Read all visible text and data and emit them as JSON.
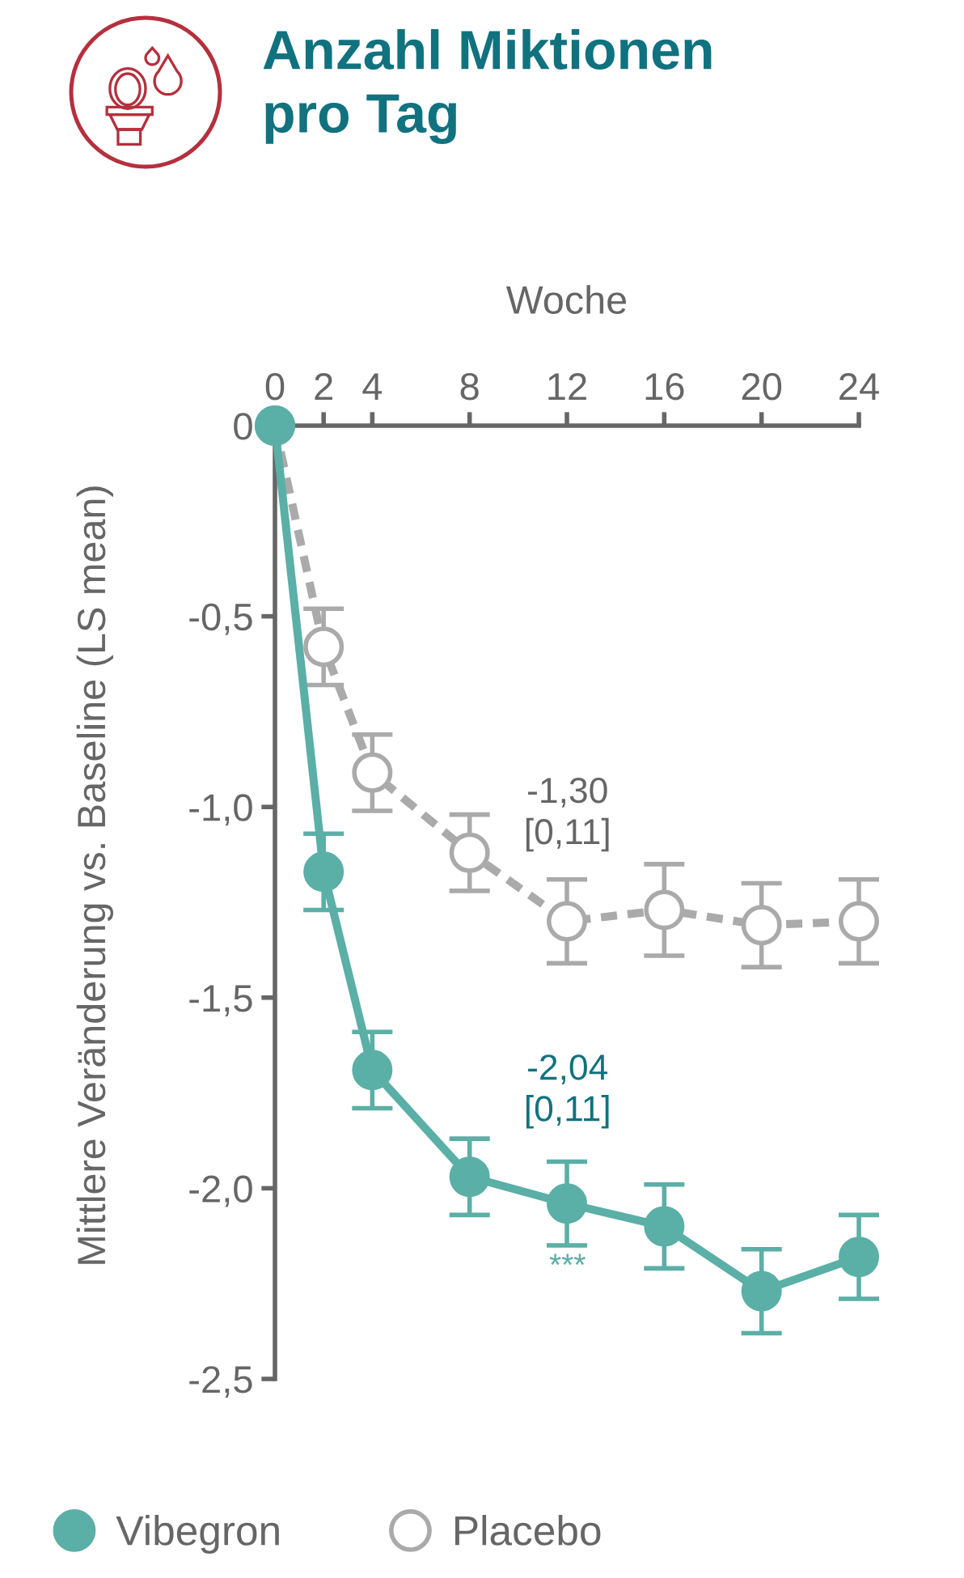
{
  "chart_data": {
    "type": "line",
    "title": "Anzahl Miktionen\npro Tag",
    "xlabel": "Woche",
    "ylabel": "Mittlere Veränderung vs. Baseline (LS mean)",
    "x": [
      0,
      2,
      4,
      8,
      12,
      16,
      20,
      24
    ],
    "series": [
      {
        "name": "Vibegron",
        "color": "#5aafa6",
        "line_style": "solid",
        "values": [
          0,
          -1.17,
          -1.69,
          -1.97,
          -2.04,
          -2.1,
          -2.27,
          -2.18
        ],
        "errors": [
          null,
          0.1,
          0.1,
          0.1,
          0.11,
          0.11,
          0.11,
          0.11
        ]
      },
      {
        "name": "Placebo",
        "color": "#aaaaaa",
        "line_style": "dashed",
        "values": [
          0,
          -0.58,
          -0.91,
          -1.12,
          -1.3,
          -1.27,
          -1.31,
          -1.3
        ],
        "errors": [
          null,
          0.1,
          0.1,
          0.1,
          0.11,
          0.12,
          0.11,
          0.11
        ]
      }
    ],
    "xlim": [
      0,
      24
    ],
    "xticks": [
      0,
      2,
      4,
      8,
      12,
      16,
      20,
      24
    ],
    "ylim": [
      -2.5,
      0
    ],
    "yticks": [
      0,
      {
        "value": -0.5,
        "label": "-0,5"
      },
      {
        "value": -1.0,
        "label": "-1,0"
      },
      {
        "value": -1.5,
        "label": "-1,5"
      },
      {
        "value": -2.0,
        "label": "-2,0"
      },
      {
        "value": -2.5,
        "label": "-2,5"
      }
    ],
    "marker": "circle",
    "legend": "bottom",
    "annotations": [
      "-1,30\n[0,11]",
      "-2,04\n[0,11]",
      "***"
    ]
  }
}
